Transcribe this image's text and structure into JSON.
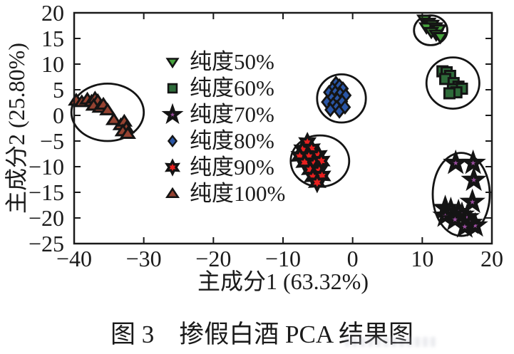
{
  "figure": {
    "caption": "图 3　掺假白酒 PCA 结果图"
  },
  "chart_data": {
    "type": "scatter",
    "title": "",
    "xlabel": "主成分1 (63.32%)",
    "ylabel": "主成分2 (25.80%)",
    "xlim": [
      -40,
      20
    ],
    "ylim": [
      -25,
      20
    ],
    "xticks": [
      -40,
      -30,
      -20,
      -10,
      0,
      10,
      20
    ],
    "yticks": [
      20,
      15,
      10,
      5,
      0,
      -5,
      -10,
      -15,
      -20,
      -25
    ],
    "grid": false,
    "legend_position": "inside-upper-center-left",
    "axis_color": "#1a1a1a",
    "edge_color": "#141414",
    "series": [
      {
        "name": "纯度50%",
        "marker": "triangle-down",
        "color": "#46a33c",
        "points": [
          [
            10.3,
            18.7
          ],
          [
            10.9,
            18.1
          ],
          [
            11.4,
            17.7
          ],
          [
            10.6,
            17.2
          ],
          [
            11.9,
            17.2
          ],
          [
            12.4,
            16.8
          ],
          [
            11.3,
            16.3
          ],
          [
            12.0,
            15.8
          ],
          [
            12.6,
            15.3
          ]
        ]
      },
      {
        "name": "纯度60%",
        "marker": "square",
        "color": "#2e6b3a",
        "points": [
          [
            12.9,
            8.6
          ],
          [
            13.5,
            8.4
          ],
          [
            14.0,
            7.7
          ],
          [
            13.3,
            7.1
          ],
          [
            14.5,
            6.3
          ],
          [
            15.2,
            5.6
          ],
          [
            14.4,
            5.1
          ],
          [
            15.7,
            5.2
          ],
          [
            14.9,
            4.5
          ],
          [
            13.9,
            4.3
          ]
        ]
      },
      {
        "name": "纯度70%",
        "marker": "star5",
        "color": "#9b4ea0",
        "points": [
          [
            14.8,
            -9.3
          ],
          [
            17.3,
            -9.3
          ],
          [
            17.4,
            -12.6
          ],
          [
            17.2,
            -16.9
          ],
          [
            13.3,
            -18.1
          ],
          [
            14.1,
            -18.5
          ],
          [
            15.2,
            -18.9
          ],
          [
            13.3,
            -19.6
          ],
          [
            15.7,
            -19.4
          ],
          [
            16.4,
            -19.9
          ],
          [
            14.7,
            -20.3
          ],
          [
            16.9,
            -21.0
          ],
          [
            17.6,
            -21.5
          ],
          [
            16.1,
            -21.7
          ]
        ]
      },
      {
        "name": "纯度80%",
        "marker": "diamond",
        "color": "#2a56a6",
        "points": [
          [
            -2.4,
            6.3
          ],
          [
            -1.9,
            5.8
          ],
          [
            -2.9,
            5.2
          ],
          [
            -1.4,
            5.2
          ],
          [
            -3.4,
            4.5
          ],
          [
            -2.5,
            4.5
          ],
          [
            -1.8,
            4.2
          ],
          [
            -1.0,
            3.9
          ],
          [
            -3.0,
            3.4
          ],
          [
            -2.2,
            3.1
          ],
          [
            -3.7,
            2.6
          ],
          [
            -2.8,
            2.2
          ],
          [
            -1.5,
            2.7
          ],
          [
            -2.3,
            1.6
          ],
          [
            -3.2,
            1.1
          ],
          [
            -1.9,
            0.8
          ],
          [
            -1.1,
            1.6
          ]
        ]
      },
      {
        "name": "纯度90%",
        "marker": "star6",
        "color": "#e8201f",
        "points": [
          [
            -6.5,
            -5.3
          ],
          [
            -7.2,
            -6.7
          ],
          [
            -5.9,
            -6.5
          ],
          [
            -7.6,
            -8.0
          ],
          [
            -6.3,
            -8.0
          ],
          [
            -4.9,
            -7.8
          ],
          [
            -6.9,
            -9.2
          ],
          [
            -5.5,
            -9.4
          ],
          [
            -4.5,
            -8.9
          ],
          [
            -6.1,
            -10.6
          ],
          [
            -4.8,
            -10.8
          ],
          [
            -5.7,
            -12.0
          ],
          [
            -4.4,
            -11.8
          ],
          [
            -5.1,
            -13.1
          ]
        ]
      },
      {
        "name": "纯度100%",
        "marker": "triangle-up",
        "color": "#954231",
        "points": [
          [
            -39.7,
            2.9
          ],
          [
            -38.9,
            2.6
          ],
          [
            -38.1,
            3.1
          ],
          [
            -37.5,
            2.7
          ],
          [
            -37.0,
            3.3
          ],
          [
            -36.6,
            2.8
          ],
          [
            -37.2,
            1.9
          ],
          [
            -36.3,
            1.5
          ],
          [
            -35.8,
            2.1
          ],
          [
            -35.2,
            1.0
          ],
          [
            -34.3,
            -0.9
          ],
          [
            -33.3,
            -1.9
          ],
          [
            -32.8,
            -1.2
          ],
          [
            -32.5,
            -2.5
          ],
          [
            -33.0,
            -3.1
          ],
          [
            -32.3,
            -3.6
          ]
        ]
      }
    ],
    "cluster_ellipses": [
      {
        "cx": -35.2,
        "cy": 0.6,
        "rx": 5.2,
        "ry": 5.6
      },
      {
        "cx": -1.6,
        "cy": 3.3,
        "rx": 3.5,
        "ry": 4.7
      },
      {
        "cx": -4.7,
        "cy": -8.9,
        "rx": 4.2,
        "ry": 5.0
      },
      {
        "cx": 11.2,
        "cy": 16.6,
        "rx": 2.4,
        "ry": 2.9
      },
      {
        "cx": 14.4,
        "cy": 6.3,
        "rx": 3.8,
        "ry": 5.0
      },
      {
        "cx": 15.6,
        "cy": -15.4,
        "rx": 4.1,
        "ry": 8.1
      }
    ]
  }
}
